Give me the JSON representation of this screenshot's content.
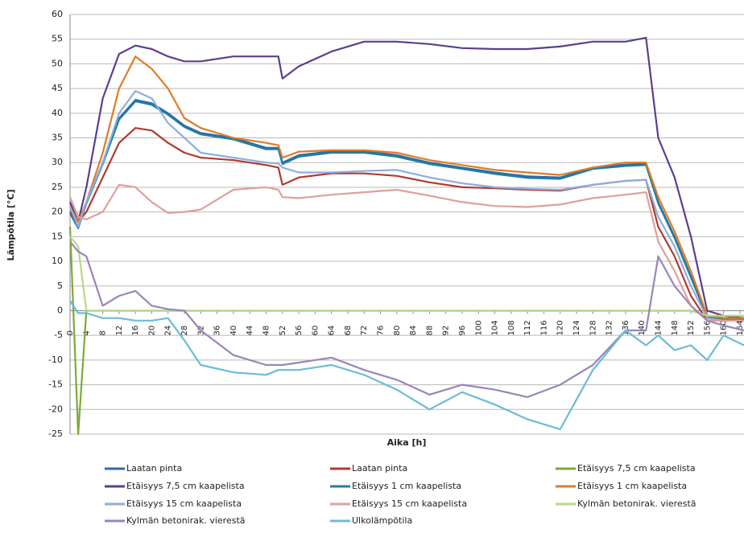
{
  "chart_data": {
    "type": "line",
    "xlabel": "Aika [h]",
    "ylabel": "Lämpötila [°C]",
    "x": [
      0,
      2,
      4,
      8,
      12,
      16,
      20,
      24,
      28,
      32,
      40,
      48,
      51,
      52,
      56,
      64,
      72,
      80,
      88,
      96,
      104,
      112,
      120,
      128,
      136,
      141,
      144,
      148,
      152,
      156,
      160,
      165
    ],
    "xlim": [
      0,
      165
    ],
    "xticks": [
      0,
      4,
      8,
      12,
      16,
      20,
      24,
      28,
      32,
      36,
      40,
      44,
      48,
      52,
      56,
      60,
      64,
      68,
      72,
      76,
      80,
      84,
      88,
      92,
      96,
      100,
      104,
      108,
      112,
      116,
      120,
      124,
      128,
      132,
      136,
      140,
      144,
      148,
      152,
      156,
      160,
      164
    ],
    "ylim": [
      -25,
      60
    ],
    "yticks": [
      -25,
      -20,
      -15,
      -10,
      -5,
      0,
      5,
      10,
      15,
      20,
      25,
      30,
      35,
      40,
      45,
      50,
      55,
      60
    ],
    "grid": true,
    "series": [
      {
        "name": "Laatan pinta",
        "color": "#2e6aa8",
        "values": [
          20,
          17,
          22,
          30,
          39,
          42.7,
          42,
          40,
          37.5,
          36,
          35,
          33,
          33,
          30,
          31.5,
          32.3,
          32.3,
          31.5,
          30,
          29,
          28,
          27.2,
          27,
          29,
          29.6,
          29.8,
          22,
          15,
          7,
          -1,
          -1.5,
          -1.5
        ]
      },
      {
        "name": "Laatan pinta",
        "color": "#b03a2e",
        "values": [
          20,
          18,
          20,
          27,
          34,
          37,
          36.5,
          34,
          32,
          31,
          30.5,
          29.5,
          29,
          25.5,
          27,
          27.8,
          27.8,
          27.3,
          26,
          25,
          24.8,
          24.5,
          24.3,
          25.5,
          26.3,
          26.5,
          17,
          11,
          3,
          -2,
          -2,
          -2
        ]
      },
      {
        "name": "Etäisyys 7,5 cm kaapelista",
        "color": "#7ea83a",
        "values": [
          17,
          -25,
          0,
          0,
          0,
          0,
          0,
          0,
          0,
          0,
          0,
          0,
          0,
          0,
          0,
          0,
          0,
          0,
          0,
          0,
          0,
          0,
          0,
          0,
          0,
          0,
          0,
          0,
          0,
          -1,
          -1,
          -1
        ]
      },
      {
        "name": "Etäisyys 7,5 cm kaapelista",
        "color": "#5b3f8c",
        "values": [
          22,
          18,
          25,
          43,
          52,
          53.7,
          53,
          51.5,
          50.5,
          50.5,
          51.5,
          51.5,
          51.5,
          47,
          49.5,
          52.5,
          54.5,
          54.5,
          54,
          53.2,
          53,
          53,
          53.5,
          54.5,
          54.5,
          55.3,
          35,
          27,
          15,
          0,
          -1,
          -1.5
        ]
      },
      {
        "name": "Etäisyys 1 cm kaapelista",
        "color": "#1f7fa0",
        "values": [
          19.7,
          16.7,
          21.7,
          29.7,
          38.7,
          42.4,
          41.7,
          39.7,
          37.2,
          35.7,
          34.7,
          32.7,
          32.7,
          29.7,
          31.2,
          32,
          32,
          31.2,
          29.7,
          28.7,
          27.7,
          26.9,
          26.7,
          28.7,
          29.3,
          29.5,
          21.7,
          14.7,
          6.7,
          -1.3,
          -1.8,
          -1.8
        ]
      },
      {
        "name": "Etäisyys 1 cm kaapelista",
        "color": "#e07b26",
        "values": [
          21,
          18,
          22,
          32,
          45,
          51.5,
          49,
          45,
          39,
          37,
          35,
          34,
          33.5,
          31,
          32.2,
          32.5,
          32.5,
          32,
          30.5,
          29.5,
          28.5,
          28,
          27.5,
          29,
          30,
          30,
          23,
          16,
          8,
          -1,
          -1.5,
          -1.5
        ]
      },
      {
        "name": "Etäisyys 15 cm kaapelista",
        "color": "#8eaede",
        "values": [
          21,
          17,
          22,
          30,
          40,
          44.5,
          43,
          38,
          35,
          32,
          31,
          30,
          29.8,
          29,
          28,
          28,
          28.3,
          28.5,
          27,
          25.8,
          25,
          24.7,
          24.5,
          25.5,
          26.3,
          26.5,
          19,
          13,
          5,
          -1.5,
          -2,
          -2
        ]
      },
      {
        "name": "Etäisyys 15 cm kaapelista",
        "color": "#e0a09a",
        "values": [
          23,
          19,
          18.5,
          20,
          25.5,
          25,
          22,
          19.8,
          20,
          20.5,
          24.5,
          25,
          24.5,
          23,
          22.8,
          23.5,
          24,
          24.5,
          23.3,
          22,
          21.2,
          21,
          21.5,
          22.8,
          23.5,
          24,
          14,
          8,
          1,
          -2,
          -2,
          -2
        ]
      },
      {
        "name": "Kylmän betonirak. vierestä",
        "color": "#b8d88a",
        "values": [
          15,
          13,
          0,
          0,
          0,
          0,
          0,
          0,
          0,
          0,
          0,
          0,
          0,
          0,
          0,
          0,
          0,
          0,
          0,
          0,
          0,
          0,
          0,
          0,
          0,
          0,
          0,
          0,
          0,
          -1,
          -1,
          -1
        ]
      },
      {
        "name": "Kylmän betonirak. vierestä",
        "color": "#9a85b8",
        "values": [
          14,
          12,
          11,
          1,
          3,
          4,
          1,
          0.3,
          0,
          -4,
          -9,
          -11,
          -11,
          -11,
          -10.5,
          -9.5,
          -12,
          -14,
          -17,
          -15,
          -16,
          -17.5,
          -15,
          -11,
          -4,
          -4,
          11,
          5,
          1,
          -2,
          -3,
          -4
        ]
      },
      {
        "name": "Ulkolämpötila",
        "color": "#6bbcd4",
        "values": [
          2,
          -0.5,
          -0.5,
          -1.5,
          -1.5,
          -2,
          -2,
          -1.5,
          -6,
          -11,
          -12.5,
          -13,
          -12,
          -12,
          -12,
          -11,
          -13,
          -16,
          -20,
          -16.5,
          -19,
          -22,
          -24,
          -12,
          -4,
          -7,
          -5,
          -8,
          -7,
          -10,
          -5,
          -7
        ]
      }
    ]
  }
}
